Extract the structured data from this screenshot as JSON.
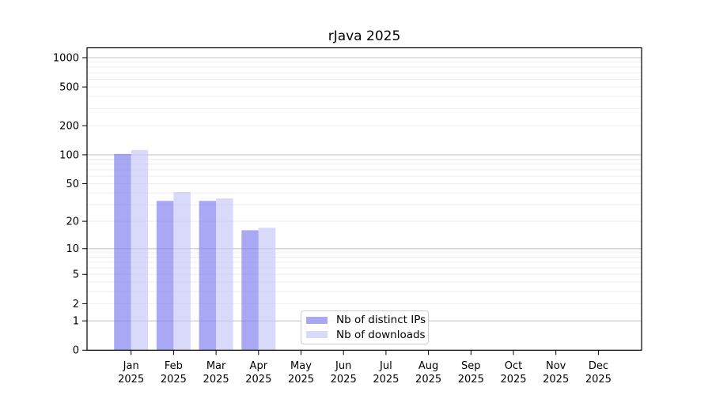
{
  "chart_data": {
    "type": "bar",
    "title": "rJava 2025",
    "categories": [
      "Jan",
      "Feb",
      "Mar",
      "Apr",
      "May",
      "Jun",
      "Jul",
      "Aug",
      "Sep",
      "Oct",
      "Nov",
      "Dec"
    ],
    "xtick_year": "2025",
    "series": [
      {
        "name": "Nb of distinct IPs",
        "color": "rgba(127,127,240,0.68)",
        "values": [
          102,
          33,
          33,
          16,
          0,
          0,
          0,
          0,
          0,
          0,
          0,
          0
        ]
      },
      {
        "name": "Nb of downloads",
        "color": "rgba(199,199,246,0.68)",
        "values": [
          112,
          41,
          35,
          17,
          0,
          0,
          0,
          0,
          0,
          0,
          0,
          0
        ]
      }
    ],
    "yscale": "log1p",
    "ytick_labels": [
      0,
      1,
      2,
      5,
      10,
      20,
      50,
      100,
      200,
      500,
      1000
    ],
    "ylim": [
      0,
      1260
    ],
    "grid": true,
    "grid_major_at": [
      1,
      10,
      100,
      1000
    ],
    "legend_position": "lower-center",
    "xlabel": "",
    "ylabel": ""
  },
  "colors": {
    "major_grid": "#c6c6c6",
    "minor_grid": "#eeeeee",
    "axis": "#000000",
    "text": "#000000",
    "background": "#ffffff"
  }
}
